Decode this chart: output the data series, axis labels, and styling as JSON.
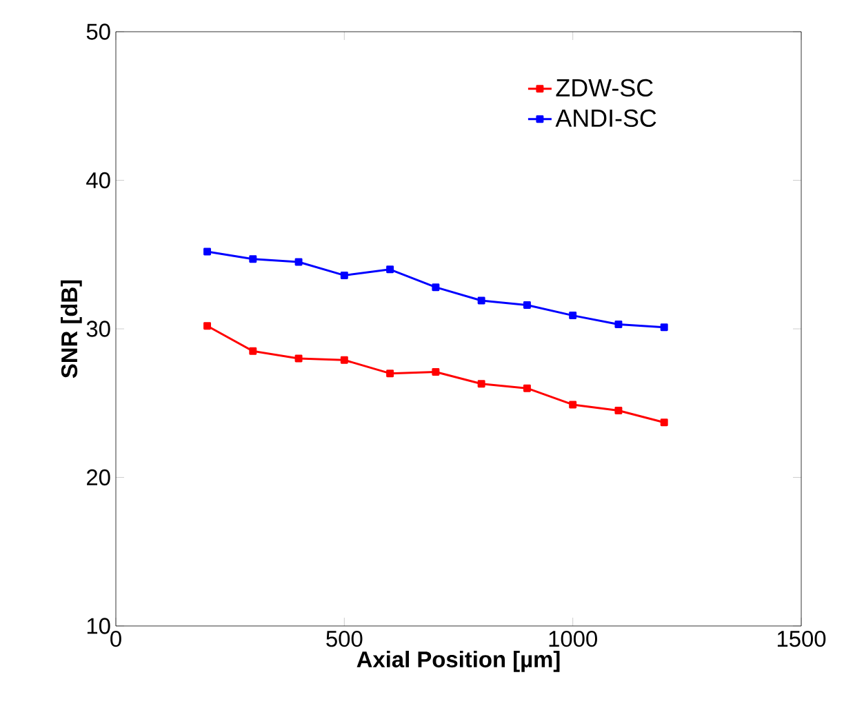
{
  "chart_data": {
    "type": "line",
    "xlabel": "Axial Position [µm]",
    "ylabel": "SNR [dB]",
    "x": [
      200,
      300,
      400,
      500,
      600,
      700,
      800,
      900,
      1000,
      1100,
      1200
    ],
    "series": [
      {
        "name": "ZDW-SC",
        "color": "#ff0000",
        "values": [
          30.2,
          28.5,
          28.0,
          27.9,
          27.0,
          27.1,
          26.3,
          26.0,
          24.9,
          24.5,
          23.7
        ]
      },
      {
        "name": "ANDI-SC",
        "color": "#0000ff",
        "values": [
          35.2,
          34.7,
          34.5,
          33.6,
          34.0,
          32.8,
          31.9,
          31.6,
          30.9,
          30.3,
          30.1
        ]
      }
    ],
    "xlim": [
      0,
      1500
    ],
    "ylim": [
      10,
      50
    ],
    "xticks": [
      0,
      500,
      1000,
      1500
    ],
    "yticks": [
      10,
      20,
      30,
      40,
      50
    ],
    "grid": false,
    "legend": "top right",
    "marker": "square",
    "line_style": "solid"
  }
}
